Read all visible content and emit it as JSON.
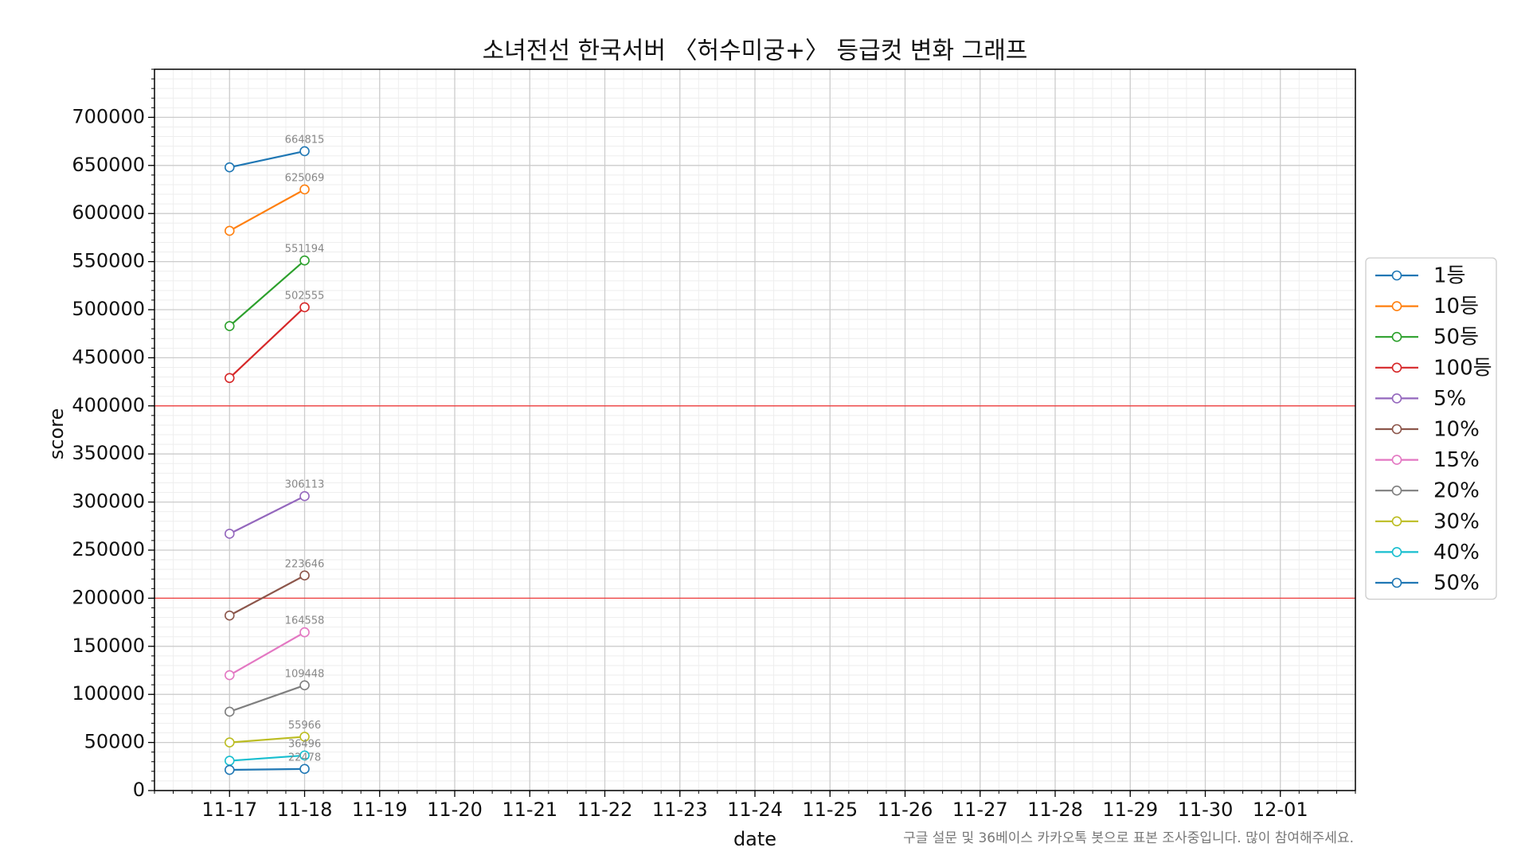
{
  "chart_data": {
    "type": "line",
    "title": "소녀전선 한국서버 〈허수미궁+〉 등급컷 변화 그래프",
    "xlabel": "date",
    "ylabel": "score",
    "note": "구글 설문 및 36베이스 카카오톡 봇으로 표본 조사중입니다. 많이 참여해주세요.",
    "categories": [
      "11-17",
      "11-18",
      "11-19",
      "11-20",
      "11-21",
      "11-22",
      "11-23",
      "11-24",
      "11-25",
      "11-26",
      "11-27",
      "11-28",
      "11-29",
      "11-30",
      "12-01"
    ],
    "series": [
      {
        "name": "1등",
        "color": "#1f77b4",
        "values": [
          648000,
          664815,
          null,
          null,
          null,
          null,
          null,
          null,
          null,
          null,
          null,
          null,
          null,
          null,
          null
        ]
      },
      {
        "name": "10등",
        "color": "#ff7f0e",
        "values": [
          582000,
          625069,
          null,
          null,
          null,
          null,
          null,
          null,
          null,
          null,
          null,
          null,
          null,
          null,
          null
        ]
      },
      {
        "name": "50등",
        "color": "#2ca02c",
        "values": [
          483000,
          551194,
          null,
          null,
          null,
          null,
          null,
          null,
          null,
          null,
          null,
          null,
          null,
          null,
          null
        ]
      },
      {
        "name": "100등",
        "color": "#d62728",
        "values": [
          429000,
          502555,
          null,
          null,
          null,
          null,
          null,
          null,
          null,
          null,
          null,
          null,
          null,
          null,
          null
        ]
      },
      {
        "name": "5%",
        "color": "#9467bd",
        "values": [
          267000,
          306113,
          null,
          null,
          null,
          null,
          null,
          null,
          null,
          null,
          null,
          null,
          null,
          null,
          null
        ]
      },
      {
        "name": "10%",
        "color": "#8c564b",
        "values": [
          182000,
          223646,
          null,
          null,
          null,
          null,
          null,
          null,
          null,
          null,
          null,
          null,
          null,
          null,
          null
        ]
      },
      {
        "name": "15%",
        "color": "#e377c2",
        "values": [
          120000,
          164558,
          null,
          null,
          null,
          null,
          null,
          null,
          null,
          null,
          null,
          null,
          null,
          null,
          null
        ]
      },
      {
        "name": "20%",
        "color": "#7f7f7f",
        "values": [
          82000,
          109448,
          null,
          null,
          null,
          null,
          null,
          null,
          null,
          null,
          null,
          null,
          null,
          null,
          null
        ]
      },
      {
        "name": "30%",
        "color": "#bcbd22",
        "values": [
          50000,
          55966,
          null,
          null,
          null,
          null,
          null,
          null,
          null,
          null,
          null,
          null,
          null,
          null,
          null
        ]
      },
      {
        "name": "40%",
        "color": "#17becf",
        "values": [
          31000,
          36496,
          null,
          null,
          null,
          null,
          null,
          null,
          null,
          null,
          null,
          null,
          null,
          null,
          null
        ]
      },
      {
        "name": "50%",
        "color": "#1f77b4",
        "values": [
          21500,
          22478,
          null,
          null,
          null,
          null,
          null,
          null,
          null,
          null,
          null,
          null,
          null,
          null,
          null
        ]
      }
    ],
    "data_labels": "last",
    "hlines": [
      200000,
      400000
    ],
    "hline_color": "#ff0000",
    "ylim": [
      0,
      750000
    ],
    "yticks": [
      0,
      50000,
      100000,
      150000,
      200000,
      250000,
      300000,
      350000,
      400000,
      450000,
      500000,
      550000,
      600000,
      650000,
      700000
    ],
    "grid": true,
    "minor_grid": true,
    "legend": "right"
  }
}
